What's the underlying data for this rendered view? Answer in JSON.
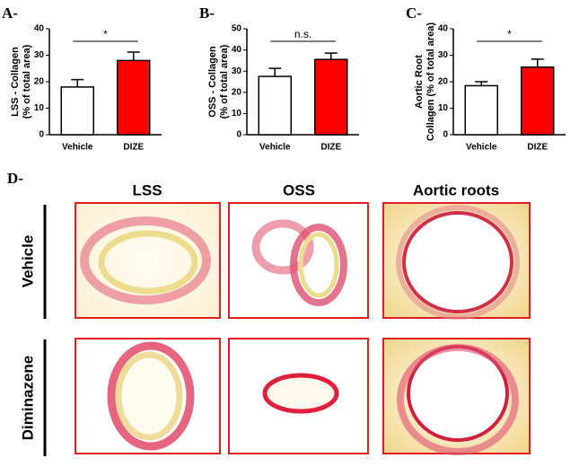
{
  "chart_data": [
    {
      "type": "bar",
      "panel": "A-",
      "ylabel": [
        "LSS - Collagen",
        "(% of total area)"
      ],
      "categories": [
        "Vehicle",
        "DIZE"
      ],
      "values": [
        18,
        28
      ],
      "errors": [
        2.8,
        3.2
      ],
      "colors": [
        "#ffffff",
        "#ff0000"
      ],
      "ylim": [
        0,
        40
      ],
      "yticks": [
        0,
        10,
        20,
        30,
        40
      ],
      "significance": "*"
    },
    {
      "type": "bar",
      "panel": "B-",
      "ylabel": [
        "OSS - Collagen",
        "(% of total area)"
      ],
      "categories": [
        "Vehicle",
        "DIZE"
      ],
      "values": [
        27.5,
        35.5
      ],
      "errors": [
        3.8,
        3
      ],
      "colors": [
        "#ffffff",
        "#ff0000"
      ],
      "ylim": [
        0,
        50
      ],
      "yticks": [
        0,
        10,
        20,
        30,
        40,
        50
      ],
      "significance": "n.s."
    },
    {
      "type": "bar",
      "panel": "C-",
      "ylabel": [
        "Aortic Root",
        "Collagen (% of total area)"
      ],
      "categories": [
        "Vehicle",
        "DIZE"
      ],
      "values": [
        18.5,
        25.5
      ],
      "errors": [
        1.5,
        3
      ],
      "colors": [
        "#ffffff",
        "#ff0000"
      ],
      "ylim": [
        0,
        40
      ],
      "yticks": [
        0,
        10,
        20,
        30,
        40
      ],
      "significance": "*"
    }
  ],
  "panel_d": {
    "label": "D-",
    "columns": [
      "LSS",
      "OSS",
      "Aortic roots"
    ],
    "rows": [
      "Vehicle",
      "Diminazene"
    ]
  }
}
